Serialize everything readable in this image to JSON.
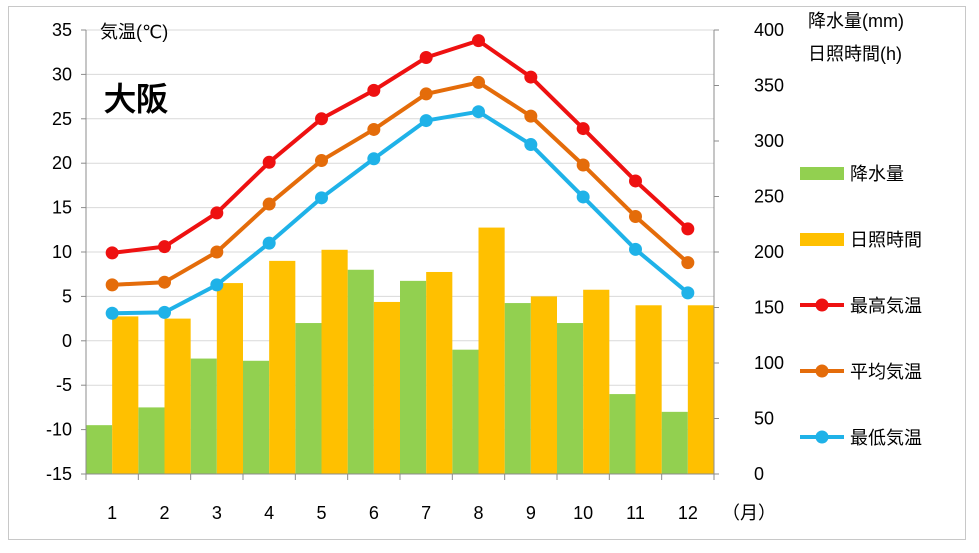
{
  "chart_data": {
    "type": "bar+line",
    "title": "大阪",
    "categories": [
      "1",
      "2",
      "3",
      "4",
      "5",
      "6",
      "7",
      "8",
      "9",
      "10",
      "11",
      "12"
    ],
    "x_unit": "（月）",
    "left_axis": {
      "label": "気温(℃)",
      "ylim": [
        -15,
        35
      ],
      "ticks": [
        35,
        30,
        25,
        20,
        15,
        10,
        5,
        0,
        -5,
        -10,
        -15
      ]
    },
    "right_axis": {
      "label_line1": "降水量(mm)",
      "label_line2": "日照時間(h)",
      "ylim": [
        0,
        400
      ],
      "ticks": [
        400,
        350,
        300,
        250,
        200,
        150,
        100,
        50,
        0
      ]
    },
    "bar_series": [
      {
        "name": "降水量",
        "axis": "right",
        "color": "#92d050",
        "values": [
          44,
          60,
          104,
          102,
          136,
          184,
          174,
          112,
          154,
          136,
          72,
          56
        ]
      },
      {
        "name": "日照時間",
        "axis": "right",
        "color": "#ffc000",
        "values": [
          142,
          140,
          172,
          192,
          202,
          155,
          182,
          222,
          160,
          166,
          152,
          152
        ]
      }
    ],
    "line_series": [
      {
        "name": "最高気温",
        "axis": "left",
        "color": "#ee1111",
        "values": [
          9.9,
          10.6,
          14.4,
          20.1,
          25.0,
          28.2,
          31.9,
          33.8,
          29.7,
          23.9,
          18.0,
          12.6
        ]
      },
      {
        "name": "平均気温",
        "axis": "left",
        "color": "#e46c0a",
        "values": [
          6.3,
          6.6,
          10.0,
          15.4,
          20.3,
          23.8,
          27.8,
          29.1,
          25.3,
          19.8,
          14.0,
          8.8
        ]
      },
      {
        "name": "最低気温",
        "axis": "left",
        "color": "#1fb2e8",
        "values": [
          3.1,
          3.2,
          6.3,
          11.0,
          16.1,
          20.5,
          24.8,
          25.8,
          22.1,
          16.2,
          10.3,
          5.4
        ]
      }
    ],
    "legend": {
      "position": "right",
      "items": [
        "降水量",
        "日照時間",
        "最高気温",
        "平均気温",
        "最低気温"
      ]
    }
  }
}
